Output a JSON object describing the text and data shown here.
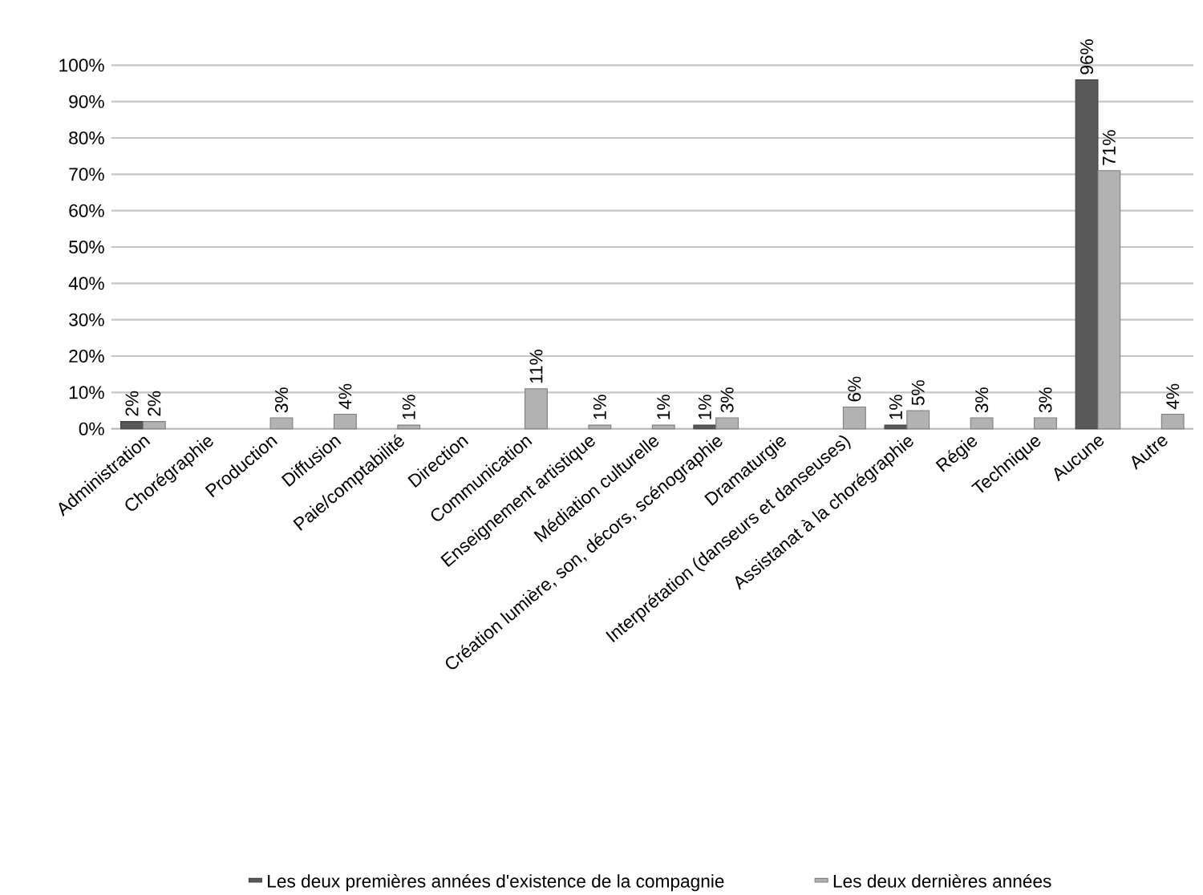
{
  "chart_data": {
    "type": "bar",
    "categories": [
      "Administration",
      "Chorégraphie",
      "Production",
      "Diffusion",
      "Paie/comptabilité",
      "Direction",
      "Communication",
      "Enseignement artistique",
      "Médiation culturelle",
      "Création lumière, son, décors, scénographie",
      "Dramaturgie",
      "Interprétation (danseurs et danseuses)",
      "Assistanat à la chorégraphie",
      "Régie",
      "Technique",
      "Aucune",
      "Autre"
    ],
    "series": [
      {
        "name": "Les deux premières années d'existence de la compagnie",
        "color": "#595959",
        "values": [
          2,
          null,
          null,
          null,
          null,
          null,
          null,
          null,
          null,
          1,
          null,
          null,
          1,
          null,
          null,
          96,
          null
        ],
        "value_labels": [
          "2%",
          null,
          null,
          null,
          null,
          null,
          null,
          null,
          null,
          "1%",
          null,
          null,
          "1%",
          null,
          null,
          "96%",
          null
        ]
      },
      {
        "name": "Les deux dernières années",
        "color": "#b2b2b2",
        "values": [
          2,
          null,
          3,
          4,
          1,
          null,
          11,
          1,
          1,
          3,
          null,
          6,
          5,
          3,
          3,
          71,
          4
        ],
        "value_labels": [
          "2%",
          null,
          "3%",
          "4%",
          "1%",
          null,
          "11%",
          "1%",
          "1%",
          "3%",
          null,
          "6%",
          "5%",
          "3%",
          "3%",
          "71%",
          "4%"
        ]
      }
    ],
    "ylim": [
      0,
      100
    ],
    "yticks": [
      {
        "value": 0,
        "label": "0%"
      },
      {
        "value": 10,
        "label": "10%"
      },
      {
        "value": 20,
        "label": "20%"
      },
      {
        "value": 30,
        "label": "30%"
      },
      {
        "value": 40,
        "label": "40%"
      },
      {
        "value": 50,
        "label": "50%"
      },
      {
        "value": 60,
        "label": "60%"
      },
      {
        "value": 70,
        "label": "70%"
      },
      {
        "value": 80,
        "label": "80%"
      },
      {
        "value": 90,
        "label": "90%"
      },
      {
        "value": 100,
        "label": "100%"
      }
    ],
    "grid": "y",
    "legend": "bottom"
  }
}
